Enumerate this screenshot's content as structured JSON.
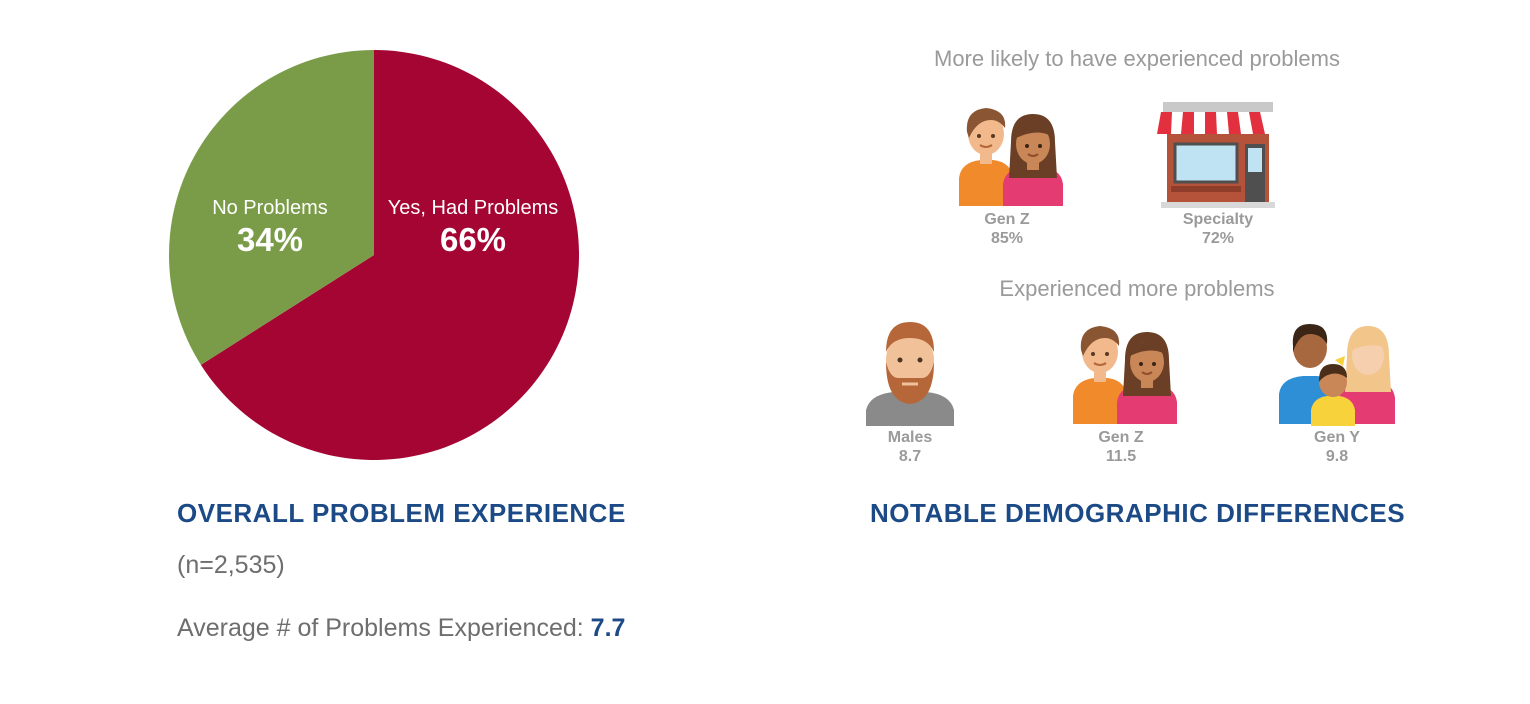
{
  "chart_data": {
    "type": "pie",
    "title": "OVERALL PROBLEM EXPERIENCE",
    "slices": [
      {
        "label": "Yes, Had Problems",
        "value": 66,
        "display": "66%",
        "color": "#a50533"
      },
      {
        "label": "No Problems",
        "value": 34,
        "display": "34%",
        "color": "#7a9c48"
      }
    ]
  },
  "overall": {
    "title": "OVERALL PROBLEM EXPERIENCE",
    "sample": "(n=2,535)",
    "avg_label": "Average # of Problems Experienced: ",
    "avg_value": "7.7"
  },
  "notable": {
    "title": "NOTABLE DEMOGRAPHIC DIFFERENCES",
    "likely_head": "More likely to have experienced problems",
    "more_head": "Experienced more problems",
    "likely_items": [
      {
        "label": "Gen Z",
        "value": "85%",
        "icon": "couple-icon"
      },
      {
        "label": "Specialty",
        "value": "72%",
        "icon": "storefront-icon"
      }
    ],
    "more_items": [
      {
        "label": "Males",
        "value": "8.7",
        "icon": "bearded-man-icon"
      },
      {
        "label": "Gen Z",
        "value": "11.5",
        "icon": "couple-icon"
      },
      {
        "label": "Gen Y",
        "value": "9.8",
        "icon": "family-icon"
      }
    ]
  }
}
